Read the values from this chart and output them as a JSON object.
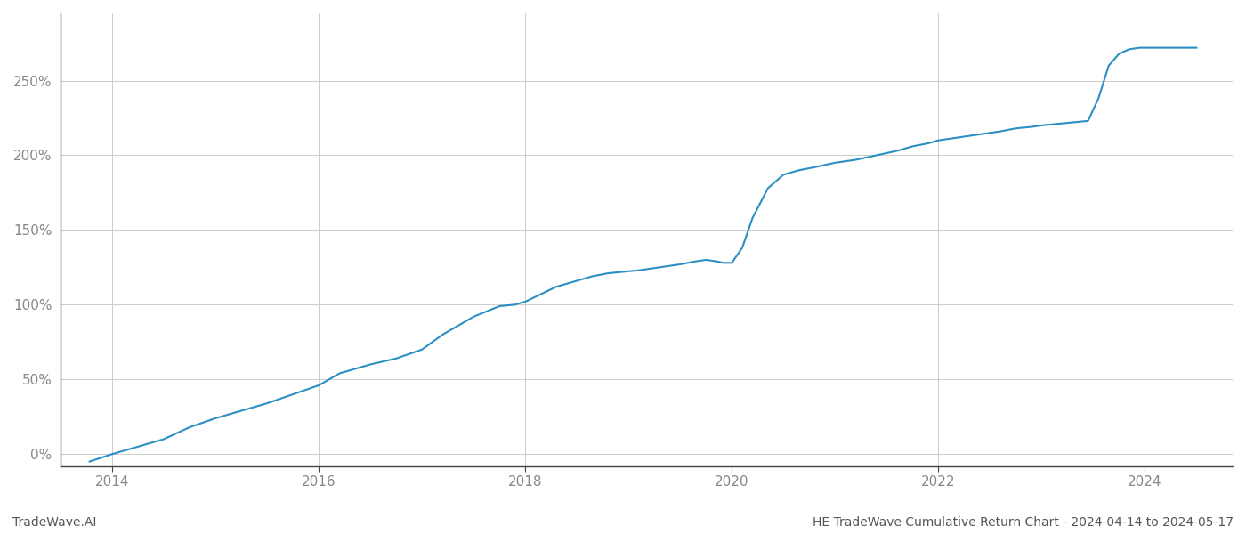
{
  "title": "HE TradeWave Cumulative Return Chart - 2024-04-14 to 2024-05-17",
  "watermark": "TradeWave.AI",
  "line_color": "#2c8fc4",
  "line_width": 1.5,
  "background_color": "#ffffff",
  "grid_color": "#cccccc",
  "xlim": [
    2013.5,
    2024.85
  ],
  "ylim": [
    -0.08,
    2.95
  ],
  "yticks": [
    0.0,
    0.5,
    1.0,
    1.5,
    2.0,
    2.5
  ],
  "ytick_labels": [
    "0%",
    "50%",
    "100%",
    "150%",
    "200%",
    "250%"
  ],
  "xtick_years": [
    2014,
    2016,
    2018,
    2020,
    2022,
    2024
  ],
  "data_x": [
    2013.78,
    2014.0,
    2014.2,
    2014.5,
    2014.75,
    2015.0,
    2015.2,
    2015.5,
    2015.75,
    2016.0,
    2016.2,
    2016.5,
    2016.75,
    2017.0,
    2017.2,
    2017.5,
    2017.75,
    2017.9,
    2018.0,
    2018.15,
    2018.3,
    2018.5,
    2018.65,
    2018.8,
    2018.95,
    2019.1,
    2019.3,
    2019.5,
    2019.65,
    2019.75,
    2019.85,
    2019.92,
    2020.0,
    2020.1,
    2020.2,
    2020.35,
    2020.5,
    2020.65,
    2020.8,
    2021.0,
    2021.2,
    2021.4,
    2021.6,
    2021.75,
    2021.9,
    2022.0,
    2022.2,
    2022.4,
    2022.6,
    2022.75,
    2022.9,
    2023.0,
    2023.15,
    2023.3,
    2023.45,
    2023.55,
    2023.65,
    2023.75,
    2023.85,
    2023.95,
    2024.05,
    2024.2,
    2024.35,
    2024.5
  ],
  "data_y": [
    -0.05,
    0.0,
    0.04,
    0.1,
    0.18,
    0.24,
    0.28,
    0.34,
    0.4,
    0.46,
    0.54,
    0.6,
    0.64,
    0.7,
    0.8,
    0.92,
    0.99,
    1.0,
    1.02,
    1.07,
    1.12,
    1.16,
    1.19,
    1.21,
    1.22,
    1.23,
    1.25,
    1.27,
    1.29,
    1.3,
    1.29,
    1.28,
    1.28,
    1.38,
    1.58,
    1.78,
    1.87,
    1.9,
    1.92,
    1.95,
    1.97,
    2.0,
    2.03,
    2.06,
    2.08,
    2.1,
    2.12,
    2.14,
    2.16,
    2.18,
    2.19,
    2.2,
    2.21,
    2.22,
    2.23,
    2.38,
    2.6,
    2.68,
    2.71,
    2.72,
    2.72,
    2.72,
    2.72,
    2.72
  ]
}
